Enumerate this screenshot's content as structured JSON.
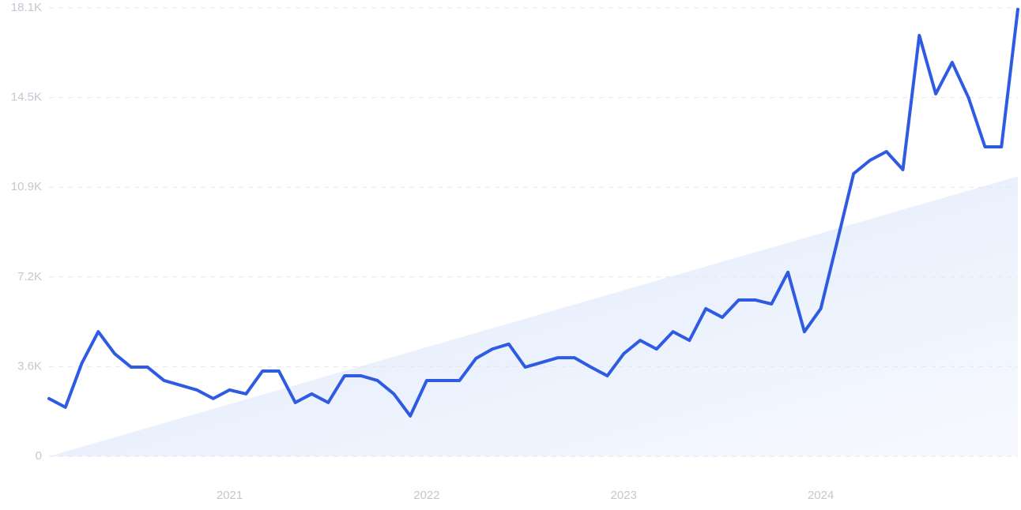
{
  "chart_data": {
    "type": "line",
    "categories": [
      null,
      null,
      null,
      null,
      null,
      null,
      null,
      null,
      null,
      null,
      null,
      "2021",
      null,
      null,
      null,
      null,
      null,
      null,
      null,
      null,
      null,
      null,
      null,
      "2022",
      null,
      null,
      null,
      null,
      null,
      null,
      null,
      null,
      null,
      null,
      null,
      "2023",
      null,
      null,
      null,
      null,
      null,
      null,
      null,
      null,
      null,
      null,
      null,
      "2024",
      null,
      null,
      null,
      null,
      null,
      null,
      null,
      null,
      null,
      null,
      null,
      null
    ],
    "series": [
      {
        "color": "#2f5be3",
        "values": [
          2330,
          1980,
          3760,
          5030,
          4140,
          3600,
          3600,
          3060,
          2870,
          2680,
          2330,
          2680,
          2520,
          3440,
          3440,
          2170,
          2520,
          2170,
          3250,
          3250,
          3060,
          2520,
          1630,
          3060,
          3060,
          3060,
          3950,
          4330,
          4530,
          3600,
          3790,
          3980,
          3980,
          3600,
          3250,
          4140,
          4680,
          4330,
          5030,
          4680,
          5960,
          5610,
          6310,
          6310,
          6150,
          7430,
          5030,
          5960,
          8670,
          11410,
          11950,
          12300,
          11570,
          16990,
          14630,
          15900,
          14470,
          12490,
          12490,
          18040
        ]
      }
    ],
    "trend": [
      0,
      11300
    ],
    "ylim": [
      0,
      18100
    ],
    "yticks": [
      0,
      {
        "value": 3620,
        "label": "3.6K"
      },
      {
        "value": 7240,
        "label": "7.2K"
      },
      {
        "value": 10860,
        "label": "10.9K"
      },
      {
        "value": 14480,
        "label": "14.5K"
      },
      {
        "value": 18100,
        "label": "18.1K"
      }
    ],
    "grid": true
  }
}
